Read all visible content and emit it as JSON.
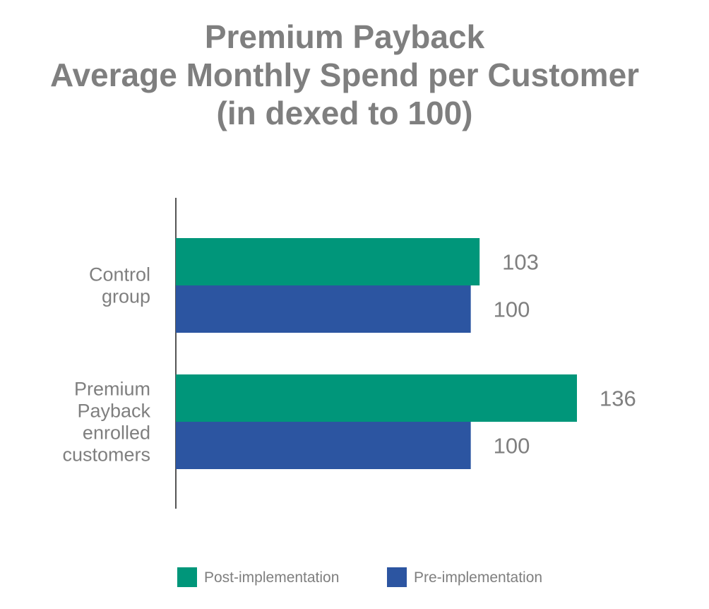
{
  "chart_data": {
    "type": "bar",
    "orientation": "horizontal",
    "title": [
      "Premium Payback",
      "Average Monthly Spend per Customer",
      "(in dexed to 100)"
    ],
    "categories": [
      [
        "Control",
        "group"
      ],
      [
        "Premium",
        "Payback",
        "enrolled",
        "customers"
      ]
    ],
    "series": [
      {
        "name": "Post-implementation",
        "values": [
          103,
          136
        ],
        "color": "#00967a"
      },
      {
        "name": "Pre-implementation",
        "values": [
          100,
          100
        ],
        "color": "#2c55a1"
      }
    ],
    "xlim": [
      0,
      165
    ],
    "grid": false,
    "data_labels": true,
    "legend_position": "bottom"
  }
}
